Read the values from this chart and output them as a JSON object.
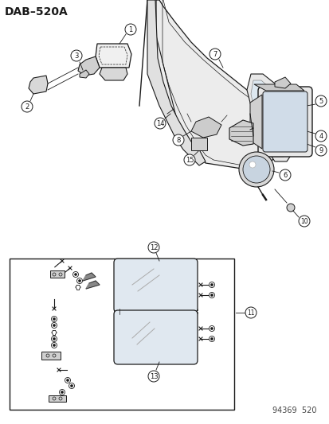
{
  "title": "DAB–520A",
  "footer": "94369  520",
  "bg_color": "#ffffff",
  "lc": "#1a1a1a",
  "title_fontsize": 10,
  "footer_fontsize": 7,
  "label_fontsize": 6.5
}
